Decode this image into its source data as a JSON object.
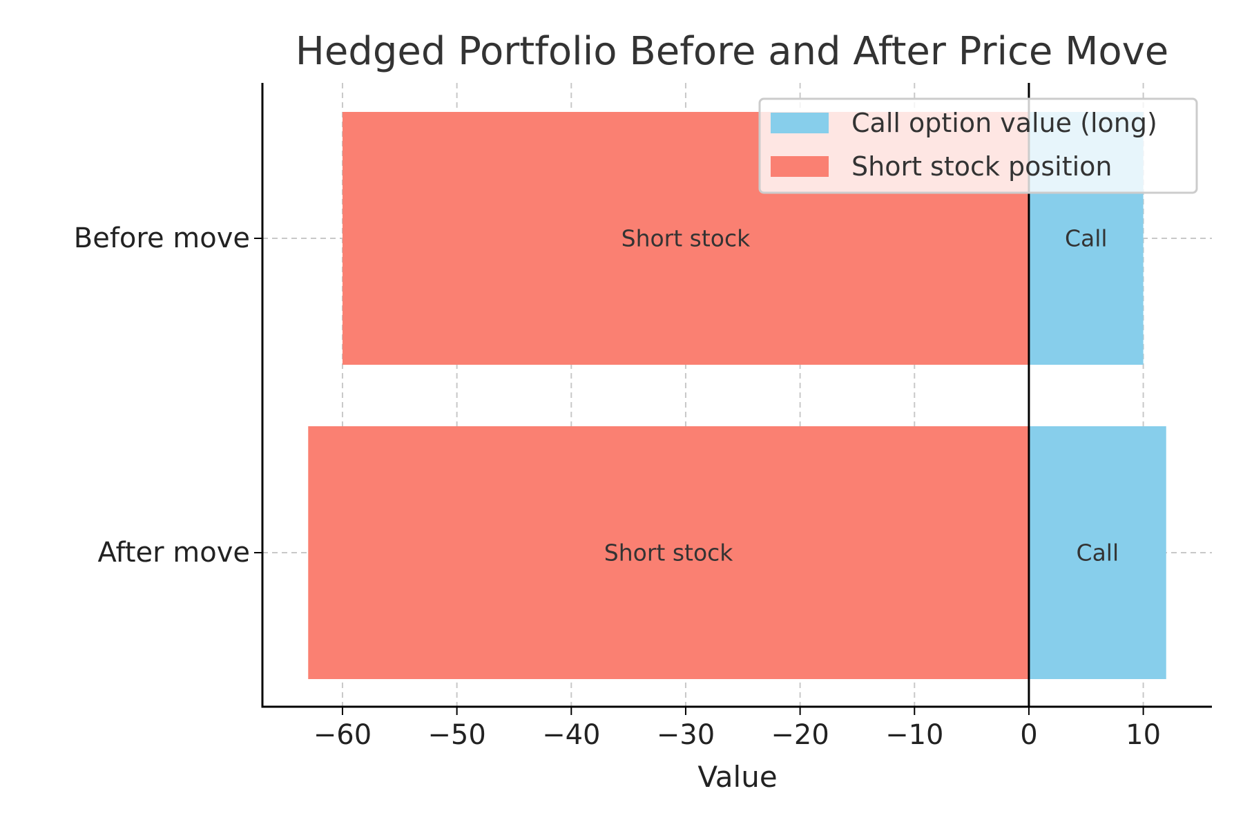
{
  "chart_data": {
    "type": "bar",
    "orientation": "horizontal",
    "stacked": true,
    "title": "Hedged Portfolio Before and After Price Move",
    "xlabel": "Value",
    "ylabel": "",
    "categories": [
      "Before move",
      "After move"
    ],
    "xlim": [
      -67,
      16
    ],
    "xticks": [
      -60,
      -50,
      -40,
      -30,
      -20,
      -10,
      0,
      10
    ],
    "xtick_labels": [
      "−60",
      "−50",
      "−40",
      "−30",
      "−20",
      "−10",
      "0",
      "10"
    ],
    "grid": true,
    "zero_line": true,
    "legend_position": "top-right",
    "series": [
      {
        "name": "Call option value (long)",
        "color": "#87CEEB",
        "values": [
          10,
          12
        ],
        "bar_labels": [
          "Call",
          "Call"
        ]
      },
      {
        "name": "Short stock position",
        "color": "#FA8072",
        "values": [
          -60,
          -63
        ],
        "bar_labels": [
          "Short stock",
          "Short stock"
        ]
      }
    ]
  }
}
